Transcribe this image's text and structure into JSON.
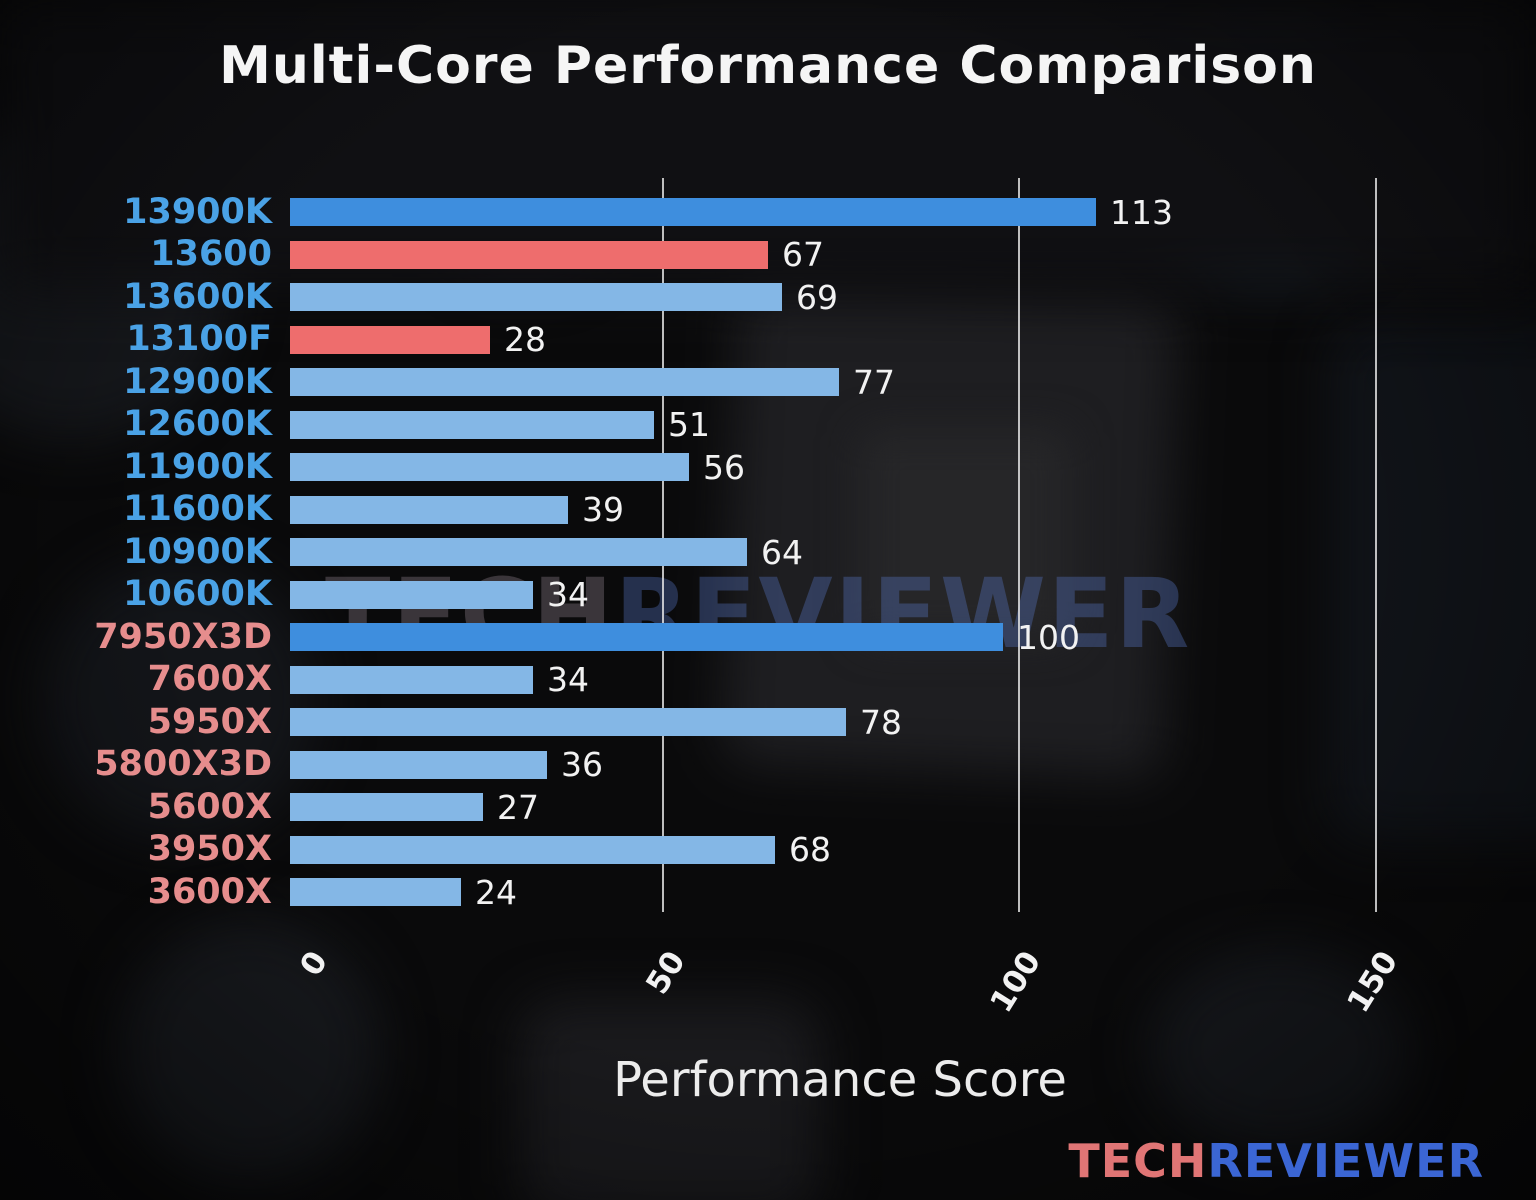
{
  "title": "Multi-Core Performance Comparison",
  "xlabel": "Performance Score",
  "watermark": {
    "part1": "TECH",
    "part2": "REVIEWER"
  },
  "logo": {
    "part1": "TECH",
    "part2": "REVIEWER"
  },
  "chart_data": {
    "type": "bar",
    "orientation": "horizontal",
    "title": "Multi-Core Performance Comparison",
    "xlabel": "Performance Score",
    "xlim": [
      0,
      157
    ],
    "xticks": [
      0,
      50,
      100,
      150
    ],
    "xtick_labels": [
      "0",
      "50",
      "100",
      "150"
    ],
    "gridlines": [
      50,
      100,
      150
    ],
    "legend": "none",
    "categories": [
      "13900K",
      "13600",
      "13600K",
      "13100F",
      "12900K",
      "12600K",
      "11900K",
      "11600K",
      "10900K",
      "10600K",
      "7950X3D",
      "7600X",
      "5950X",
      "5800X3D",
      "5600X",
      "3950X",
      "3600X"
    ],
    "values": [
      113,
      67,
      69,
      28,
      77,
      51,
      56,
      39,
      64,
      34,
      100,
      34,
      78,
      36,
      27,
      68,
      24
    ],
    "bar_colors": [
      "#3e8ede",
      "#ee6d6d",
      "#84b7e6",
      "#ee6d6d",
      "#84b7e6",
      "#84b7e6",
      "#84b7e6",
      "#84b7e6",
      "#84b7e6",
      "#84b7e6",
      "#3e8ede",
      "#84b7e6",
      "#84b7e6",
      "#84b7e6",
      "#84b7e6",
      "#84b7e6",
      "#84b7e6"
    ],
    "label_colors": [
      "#4aa2e6",
      "#4aa2e6",
      "#4aa2e6",
      "#4aa2e6",
      "#4aa2e6",
      "#4aa2e6",
      "#4aa2e6",
      "#4aa2e6",
      "#4aa2e6",
      "#4aa2e6",
      "#e68d8d",
      "#e68d8d",
      "#e68d8d",
      "#e68d8d",
      "#e68d8d",
      "#e68d8d",
      "#e68d8d"
    ]
  },
  "colors": {
    "background": "#0a0a0b",
    "title_text": "#f5f5f5",
    "value_text": "#f2f2f2",
    "grid": "#ebebeb",
    "intel_label": "#4aa2e6",
    "amd_label": "#e68d8d",
    "bar_default": "#84b7e6",
    "bar_highlight": "#3e8ede",
    "bar_red": "#ee6d6d",
    "logo_tech": "#e07575",
    "logo_reviewer": "#3b66d4"
  }
}
